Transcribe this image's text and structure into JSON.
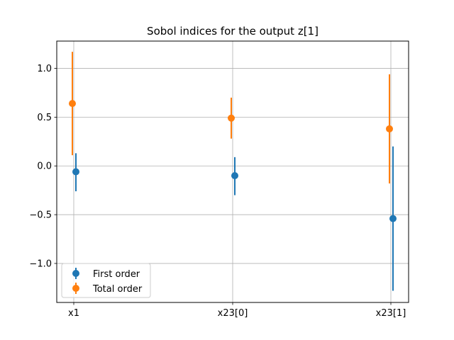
{
  "chart_data": {
    "type": "scatter",
    "title": "Sobol indices for the output z[1]",
    "xlabel": "",
    "ylabel": "",
    "categories": [
      "x1",
      "x23[0]",
      "x23[1]"
    ],
    "ylim": [
      -1.4,
      1.28
    ],
    "yticks": [
      1.0,
      0.5,
      0.0,
      -0.5,
      -1.0
    ],
    "ytick_labels": [
      "1.0",
      "0.5",
      "0.0",
      "−0.5",
      "−1.0"
    ],
    "grid": true,
    "legend_position": "lower-left",
    "series": [
      {
        "name": "First order",
        "color": "#1f77b4",
        "values": [
          -0.06,
          -0.1,
          -0.54
        ],
        "lower": [
          -0.26,
          -0.3,
          -1.28
        ],
        "upper": [
          0.13,
          0.09,
          0.2
        ]
      },
      {
        "name": "Total order",
        "color": "#ff7f0e",
        "values": [
          0.64,
          0.49,
          0.38
        ],
        "lower": [
          0.11,
          0.28,
          -0.18
        ],
        "upper": [
          1.17,
          0.7,
          0.94
        ]
      }
    ]
  }
}
